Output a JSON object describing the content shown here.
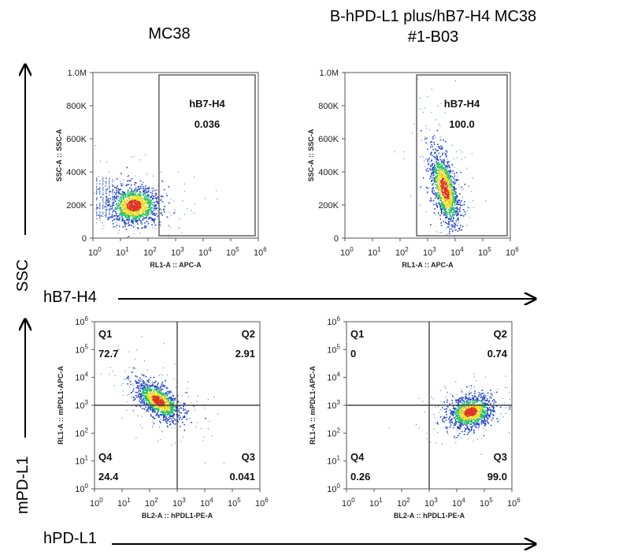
{
  "column_titles": [
    "MC38",
    "B-hPD-L1 plus/hB7-H4 MC38",
    "#1-B03"
  ],
  "axis_titles": {
    "ssc": "SSC",
    "hb7h4": "hB7-H4",
    "mpdl1": "mPD-L1",
    "hpdl1": "hPD-L1"
  },
  "colors": {
    "density_low": "#2040d0",
    "density_mid": "#20c060",
    "density_high": "#f0e020",
    "density_peak": "#e03020",
    "sparse": "#7090d0"
  },
  "chart_data": [
    {
      "type": "scatter",
      "panel": "MC38 hB7-H4 vs SSC",
      "xlabel": "RL1-A :: APC-A",
      "ylabel": "SSC-A :: SSC-A",
      "x_scale": "log",
      "xlim": [
        1,
        1000000
      ],
      "ylim": [
        0,
        1000000
      ],
      "x_ticks": [
        "10^0",
        "10^1",
        "10^2",
        "10^3",
        "10^4",
        "10^5",
        "10^6"
      ],
      "y_ticks": [
        "0",
        "200K",
        "400K",
        "600K",
        "800K",
        "1.0M"
      ],
      "gates": [
        {
          "name": "hB7-H4",
          "value": "0.036",
          "x_range": [
            250,
            1000000
          ],
          "y_range": [
            0,
            1000000
          ]
        }
      ],
      "population": {
        "x_center": 30,
        "y_center": 200000
      }
    },
    {
      "type": "scatter",
      "panel": "B-hPD-L1 plus/hB7-H4 MC38 #1-B03 hB7-H4 vs SSC",
      "xlabel": "RL1-A :: APC-A",
      "ylabel": "SSC-A :: SSC-A",
      "x_scale": "log",
      "xlim": [
        1,
        1000000
      ],
      "ylim": [
        0,
        1000000
      ],
      "x_ticks": [
        "10^0",
        "10^1",
        "10^2",
        "10^3",
        "10^4",
        "10^5",
        "10^6"
      ],
      "y_ticks": [
        "0",
        "200K",
        "400K",
        "600K",
        "800K",
        "1.0M"
      ],
      "gates": [
        {
          "name": "hB7-H4",
          "value": "100.0",
          "x_range": [
            400,
            1000000
          ],
          "y_range": [
            0,
            1000000
          ]
        }
      ],
      "population": {
        "x_center": 4000,
        "y_center": 300000
      }
    },
    {
      "type": "scatter",
      "panel": "MC38 hPD-L1 vs mPD-L1",
      "xlabel": "BL2-A :: hPDL1-PE-A",
      "ylabel": "RL1-A :: mPDL1-APC-A",
      "x_scale": "log",
      "y_scale": "log",
      "xlim": [
        1,
        1000000
      ],
      "ylim": [
        1,
        1000000
      ],
      "x_ticks": [
        "10^0",
        "10^1",
        "10^2",
        "10^3",
        "10^4",
        "10^5",
        "10^6"
      ],
      "y_ticks": [
        "10^0",
        "10^1",
        "10^2",
        "10^3",
        "10^4",
        "10^5",
        "10^6"
      ],
      "quadrant_split": {
        "x": 1000,
        "y": 1000
      },
      "quadrants": [
        {
          "name": "Q1",
          "value": "72.7"
        },
        {
          "name": "Q2",
          "value": "2.91"
        },
        {
          "name": "Q3",
          "value": "0.041"
        },
        {
          "name": "Q4",
          "value": "24.4"
        }
      ],
      "population": {
        "x_center": 200,
        "y_center": 1500
      }
    },
    {
      "type": "scatter",
      "panel": "B-hPD-L1 plus/hB7-H4 MC38 #1-B03 hPD-L1 vs mPD-L1",
      "xlabel": "BL2-A :: hPDL1-PE-A",
      "ylabel": "RL1-A :: mPDL1-APC-A",
      "x_scale": "log",
      "y_scale": "log",
      "xlim": [
        1,
        1000000
      ],
      "ylim": [
        1,
        1000000
      ],
      "x_ticks": [
        "10^0",
        "10^1",
        "10^2",
        "10^3",
        "10^4",
        "10^5",
        "10^6"
      ],
      "y_ticks": [
        "10^0",
        "10^1",
        "10^2",
        "10^3",
        "10^4",
        "10^5",
        "10^6"
      ],
      "quadrant_split": {
        "x": 1000,
        "y": 1000
      },
      "quadrants": [
        {
          "name": "Q1",
          "value": "0"
        },
        {
          "name": "Q2",
          "value": "0.74"
        },
        {
          "name": "Q3",
          "value": "99.0"
        },
        {
          "name": "Q4",
          "value": "0.26"
        }
      ],
      "population": {
        "x_center": 30000,
        "y_center": 600
      }
    }
  ]
}
